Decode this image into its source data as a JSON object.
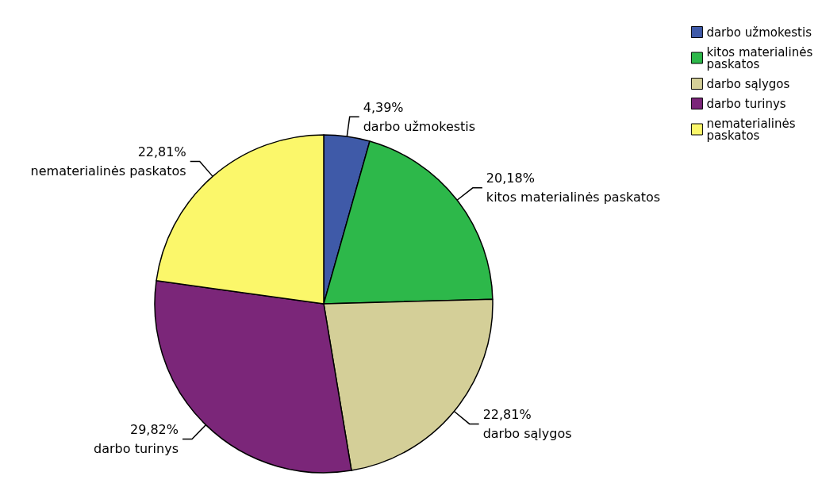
{
  "chart_data": {
    "type": "pie",
    "categories": [
      "darbo užmokestis",
      "kitos materialinės paskatos",
      "darbo sąlygos",
      "darbo turinys",
      "nematerialinės paskatos"
    ],
    "values": [
      4.39,
      20.18,
      22.81,
      29.82,
      22.81
    ],
    "value_labels": [
      "4,39%",
      "20,18%",
      "22,81%",
      "29,82%",
      "22,81%"
    ],
    "colors": [
      "#3f5aa8",
      "#2db84a",
      "#d4cf98",
      "#7b2679",
      "#fbf76a"
    ],
    "legend": "top right"
  }
}
